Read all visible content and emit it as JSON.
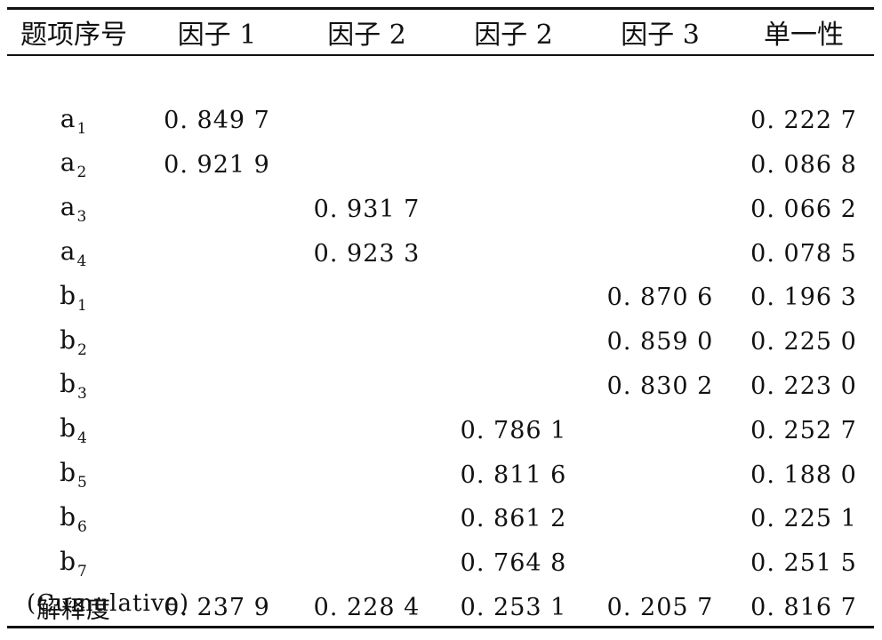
{
  "table": {
    "headers": [
      "题项序号",
      "因子 1",
      "因子 2",
      "因子 2",
      "因子 3",
      "单一性"
    ],
    "rows": [
      {
        "item": "a",
        "sub": "1",
        "values": [
          "0. 849 7",
          "",
          "",
          "",
          "0. 222 7"
        ]
      },
      {
        "item": "a",
        "sub": "2",
        "values": [
          "0. 921 9",
          "",
          "",
          "",
          "0. 086 8"
        ]
      },
      {
        "item": "a",
        "sub": "3",
        "values": [
          "",
          "0. 931 7",
          "",
          "",
          "0. 066 2"
        ]
      },
      {
        "item": "a",
        "sub": "4",
        "values": [
          "",
          "0. 923 3",
          "",
          "",
          "0. 078 5"
        ]
      },
      {
        "item": "b",
        "sub": "1",
        "values": [
          "",
          "",
          "",
          "0. 870 6",
          "0. 196 3"
        ]
      },
      {
        "item": "b",
        "sub": "2",
        "values": [
          "",
          "",
          "",
          "0. 859 0",
          "0. 225 0"
        ]
      },
      {
        "item": "b",
        "sub": "3",
        "values": [
          "",
          "",
          "",
          "0. 830 2",
          "0. 223 0"
        ]
      },
      {
        "item": "b",
        "sub": "4",
        "values": [
          "",
          "",
          "0. 786 1",
          "",
          "0. 252 7"
        ]
      },
      {
        "item": "b",
        "sub": "5",
        "values": [
          "",
          "",
          "0. 811 6",
          "",
          "0. 188 0"
        ]
      },
      {
        "item": "b",
        "sub": "6",
        "values": [
          "",
          "",
          "0. 861 2",
          "",
          "0. 225 1"
        ]
      },
      {
        "item": "b",
        "sub": "7",
        "values": [
          "",
          "",
          "0. 764 8",
          "",
          "0. 251 5"
        ]
      }
    ],
    "summary": {
      "label": "解释度",
      "label_note": "(Cumulative)",
      "values": [
        "0. 237 9",
        "0. 228 4",
        "0. 253 1",
        "0. 205 7",
        "0. 816 7"
      ]
    }
  }
}
